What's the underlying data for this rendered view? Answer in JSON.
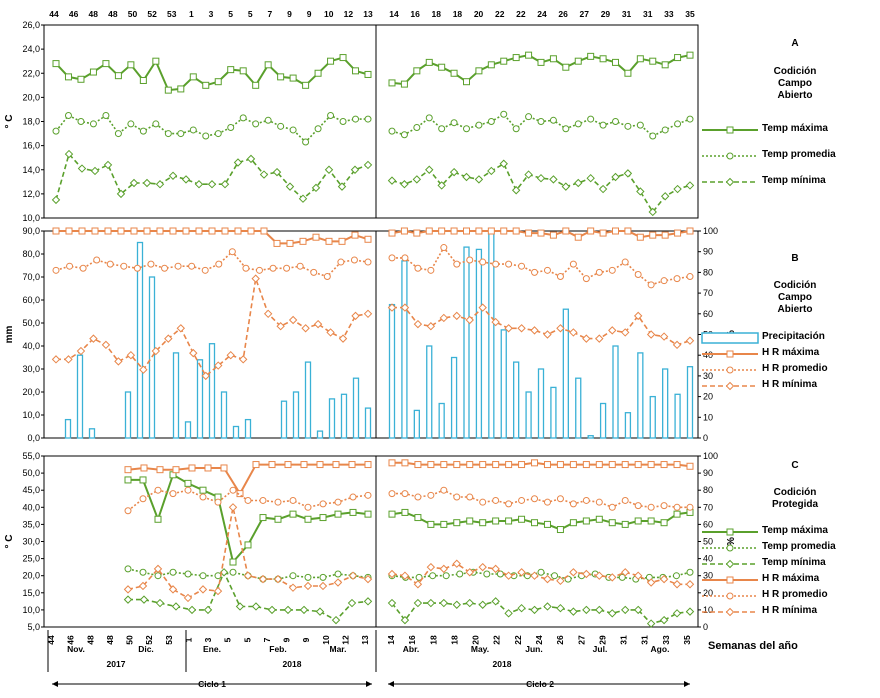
{
  "footer": {
    "weeks_label": "Semanas del año",
    "year_2017": "2017",
    "year_2018a": "2018",
    "year_2018b": "2018",
    "ciclo1": "Ciclo 1",
    "ciclo2": "Ciclo 2"
  },
  "weeks_top": [
    "44",
    "46",
    "48",
    "48",
    "50",
    "52",
    "53",
    "1",
    "3",
    "5",
    "5",
    "7",
    "9",
    "9",
    "10",
    "12",
    "13",
    "14",
    "16",
    "18",
    "18",
    "20",
    "22",
    "22",
    "24",
    "26",
    "27",
    "29",
    "31",
    "31",
    "33",
    "35"
  ],
  "weeks_bottom": [
    "44",
    "46",
    "48",
    "48",
    "50",
    "52",
    "53",
    "1",
    "3",
    "5",
    "5",
    "7",
    "9",
    "9",
    "10",
    "12",
    "13",
    "14",
    "16",
    "18",
    "18",
    "20",
    "22",
    "22",
    "24",
    "26",
    "27",
    "29",
    "31",
    "31",
    "33",
    "35"
  ],
  "months": [
    "Nov.",
    "Dic.",
    "Ene.",
    "Feb.",
    "Mar.",
    "Abr.",
    "May.",
    "Jun.",
    "Jul.",
    "Ago."
  ],
  "panels": {
    "A": {
      "letter": "A",
      "condition": [
        "Codición",
        "Campo",
        "Abierto"
      ]
    },
    "B": {
      "letter": "B",
      "condition": [
        "Codición",
        "Campo",
        "Abierto"
      ]
    },
    "C": {
      "letter": "C",
      "condition": [
        "Codición",
        "Protegida"
      ]
    }
  },
  "colors": {
    "green": "#5aa02c",
    "orange": "#e8864a",
    "blue": "#3ab1d6"
  },
  "chart_data": [
    {
      "type": "line",
      "panel": "A",
      "ylabel": "° C",
      "ylim": [
        10,
        26
      ],
      "yticks": [
        "10,0",
        "12,0",
        "14,0",
        "16,0",
        "18,0",
        "20,0",
        "22,0",
        "24,0",
        "26,0"
      ],
      "series": [
        {
          "name": "Temp máxima",
          "style": "solid",
          "color": "#5aa02c",
          "marker": "square",
          "cycle1": [
            22.8,
            21.7,
            21.5,
            22.1,
            22.8,
            21.8,
            22.7,
            21.4,
            23.0,
            20.6,
            20.7,
            21.7,
            21.0,
            21.3,
            22.3,
            22.2,
            21.0,
            22.7,
            21.7,
            21.6,
            21.0,
            22.0,
            23.0,
            23.3,
            22.2,
            21.9
          ],
          "cycle2": [
            21.2,
            21.1,
            22.2,
            22.9,
            22.5,
            22.0,
            21.3,
            22.2,
            22.7,
            23.0,
            23.3,
            23.5,
            22.9,
            23.2,
            22.5,
            23.0,
            23.4,
            23.2,
            22.9,
            22.0,
            23.2,
            23.0,
            22.7,
            23.3,
            23.5
          ]
        },
        {
          "name": "Temp promedia",
          "style": "dotted",
          "color": "#5aa02c",
          "marker": "circle",
          "cycle1": [
            17.2,
            18.5,
            18.0,
            17.8,
            18.5,
            17.0,
            17.8,
            17.2,
            17.8,
            17.0,
            17.0,
            17.3,
            16.8,
            17.0,
            17.5,
            18.3,
            17.8,
            18.1,
            17.6,
            17.3,
            16.3,
            17.4,
            18.5,
            18.0,
            18.2,
            18.2
          ],
          "cycle2": [
            17.2,
            16.9,
            17.5,
            18.3,
            17.4,
            17.9,
            17.4,
            17.7,
            18.0,
            18.6,
            17.4,
            18.4,
            18.0,
            18.1,
            17.4,
            17.8,
            18.2,
            17.7,
            18.0,
            17.6,
            17.7,
            16.8,
            17.3,
            17.8,
            18.2
          ]
        },
        {
          "name": "Temp mínima",
          "style": "dashed",
          "color": "#5aa02c",
          "marker": "diamond",
          "cycle1": [
            11.5,
            15.3,
            14.1,
            13.9,
            14.4,
            12.0,
            12.9,
            12.9,
            12.8,
            13.5,
            13.2,
            12.8,
            12.8,
            12.8,
            14.6,
            14.9,
            13.6,
            13.8,
            12.6,
            11.6,
            12.5,
            14.0,
            12.6,
            14.0,
            14.4
          ],
          "cycle2": [
            13.1,
            12.8,
            13.2,
            14.0,
            12.7,
            13.8,
            13.4,
            13.2,
            13.9,
            14.5,
            12.3,
            13.6,
            13.3,
            13.2,
            12.6,
            12.9,
            13.3,
            12.4,
            13.4,
            13.7,
            12.2,
            10.5,
            11.8,
            12.4,
            12.7
          ]
        }
      ]
    },
    {
      "type": "bar",
      "panel": "B",
      "ylabel": "mm",
      "y2label": "%",
      "ylim": [
        0,
        90
      ],
      "y2lim": [
        0,
        100
      ],
      "yticks": [
        "0,0",
        "10,0",
        "20,0",
        "30,0",
        "40,0",
        "50,0",
        "60,0",
        "70,0",
        "80,0",
        "90,0"
      ],
      "y2ticks": [
        "0",
        "10",
        "20",
        "30",
        "40",
        "50",
        "60",
        "70",
        "80",
        "90",
        "100"
      ],
      "series": [
        {
          "name": "Precipitación",
          "style": "bar",
          "color": "#3ab1d6",
          "cycle1": [
            0,
            8,
            36,
            4,
            0,
            0,
            20,
            85,
            70,
            0,
            37,
            7,
            34,
            41,
            20,
            5,
            8,
            0,
            0,
            16,
            20,
            33,
            3,
            17,
            19,
            26,
            13
          ],
          "cycle2": [
            58,
            77,
            12,
            40,
            15,
            35,
            83,
            82,
            89,
            47,
            33,
            20,
            30,
            22,
            56,
            26,
            1,
            15,
            40,
            11,
            37,
            18,
            30,
            19,
            31
          ]
        },
        {
          "name": "H R máxima",
          "style": "solid",
          "color": "#e8864a",
          "marker": "square",
          "cycle1": [
            100,
            100,
            100,
            100,
            100,
            100,
            100,
            100,
            100,
            100,
            100,
            100,
            100,
            100,
            100,
            100,
            100,
            94,
            94,
            95,
            97,
            95,
            95,
            98,
            96
          ],
          "cycle2": [
            99,
            100,
            99,
            100,
            100,
            100,
            100,
            100,
            100,
            100,
            100,
            99,
            99,
            98,
            100,
            97,
            100,
            99,
            100,
            100,
            97,
            98,
            98,
            99,
            100
          ]
        },
        {
          "name": "H R promedio",
          "style": "dotted",
          "color": "#e8864a",
          "marker": "circle",
          "cycle1": [
            81,
            83,
            82,
            86,
            84,
            83,
            82,
            84,
            82,
            83,
            83,
            81,
            84,
            90,
            82,
            81,
            82,
            82,
            83,
            80,
            78,
            85,
            86,
            85
          ],
          "cycle2": [
            87,
            87,
            82,
            81,
            92,
            84,
            86,
            85,
            84,
            84,
            83,
            80,
            81,
            78,
            84,
            77,
            80,
            81,
            85,
            79,
            74,
            76,
            77,
            78
          ]
        },
        {
          "name": "H R mínima",
          "style": "dashed",
          "color": "#e8864a",
          "marker": "diamond",
          "cycle1": [
            38,
            38,
            42,
            48,
            45,
            37,
            40,
            33,
            42,
            48,
            53,
            41,
            30,
            35,
            40,
            38,
            77,
            60,
            54,
            57,
            53,
            55,
            51,
            48,
            59,
            60
          ],
          "cycle2": [
            63,
            63,
            55,
            54,
            58,
            59,
            57,
            63,
            56,
            53,
            53,
            52,
            50,
            53,
            51,
            48,
            48,
            52,
            51,
            59,
            50,
            49,
            45,
            47
          ]
        }
      ]
    },
    {
      "type": "line",
      "panel": "C",
      "ylabel": "° C",
      "y2label": "%",
      "ylim": [
        5,
        55
      ],
      "y2lim": [
        0,
        100
      ],
      "yticks": [
        "5,0",
        "10,0",
        "15,0",
        "20,0",
        "25,0",
        "30,0",
        "35,0",
        "40,0",
        "45,0",
        "50,0",
        "55,0"
      ],
      "y2ticks": [
        "0",
        "10",
        "20",
        "30",
        "40",
        "50",
        "60",
        "70",
        "80",
        "90",
        "100"
      ],
      "series": [
        {
          "name": "Temp máxima",
          "style": "solid",
          "color": "#5aa02c",
          "marker": "square",
          "cycle1": [
            48,
            48,
            36.5,
            49.5,
            47,
            45,
            43,
            24,
            29,
            37,
            36.5,
            38,
            36.5,
            37,
            38,
            38.5,
            38
          ],
          "cycle2": [
            38,
            38.5,
            37,
            35,
            35,
            35.5,
            36,
            35.5,
            36,
            36,
            36.5,
            35.5,
            35,
            33.5,
            35.5,
            36,
            36.5,
            35.5,
            35,
            36,
            36,
            35.5,
            38,
            38.5
          ]
        },
        {
          "name": "Temp promedia",
          "style": "dotted",
          "color": "#5aa02c",
          "marker": "circle",
          "cycle1": [
            22,
            21,
            20,
            21,
            20.5,
            20,
            20,
            21,
            20,
            19,
            19,
            20,
            19.5,
            19.5,
            20.5,
            20,
            19.5
          ],
          "cycle2": [
            20,
            19.5,
            19.5,
            20,
            20,
            20.5,
            21,
            20.5,
            20.5,
            20,
            20,
            21,
            20,
            19,
            20,
            20.5,
            19.5,
            19.5,
            19,
            19.5,
            19.5,
            20,
            21
          ]
        },
        {
          "name": "Temp mínima",
          "style": "dashed",
          "color": "#5aa02c",
          "marker": "diamond",
          "cycle1": [
            13,
            13,
            12,
            11,
            10,
            10,
            21,
            11,
            11,
            10,
            10,
            10,
            9.5,
            7,
            12,
            12.5
          ],
          "cycle2": [
            12,
            7,
            12,
            12,
            12,
            11.5,
            12,
            11.5,
            12.5,
            9,
            10.5,
            10,
            11,
            10.5,
            9.5,
            10,
            10,
            9,
            10,
            10,
            6,
            7,
            9,
            9.5
          ]
        },
        {
          "name": "H R máxima",
          "style": "solid",
          "color": "#e8864a",
          "marker": "square",
          "cycle1": [
            92,
            93,
            92,
            92,
            93,
            93,
            93,
            78,
            95,
            95,
            95,
            95,
            95,
            95,
            95,
            95
          ],
          "cycle2": [
            96,
            96,
            95,
            95,
            95,
            95,
            95,
            95,
            95,
            95,
            95,
            96,
            95,
            95,
            95,
            95,
            95,
            95,
            95,
            95,
            95,
            95,
            95,
            94
          ]
        },
        {
          "name": "H R promedio",
          "style": "dotted",
          "color": "#e8864a",
          "marker": "circle",
          "cycle1": [
            68,
            75,
            80,
            78,
            80,
            76,
            73,
            80,
            74,
            74,
            73,
            74,
            70,
            72,
            73,
            76,
            77
          ],
          "cycle2": [
            78,
            78,
            76,
            77,
            80,
            76,
            76,
            73,
            74,
            72,
            74,
            75,
            73,
            75,
            72,
            74,
            73,
            70,
            74,
            71,
            70,
            71,
            70,
            70
          ]
        },
        {
          "name": "H R mínima",
          "style": "dashed",
          "color": "#e8864a",
          "marker": "diamond",
          "cycle1": [
            22,
            24,
            34,
            22,
            17,
            22,
            21,
            70,
            30,
            28,
            28,
            23,
            24,
            24,
            26,
            30,
            28
          ],
          "cycle2": [
            31,
            30,
            25,
            35,
            34,
            37,
            32,
            35,
            34,
            30,
            32,
            30,
            28,
            27,
            32,
            31,
            30,
            29,
            32,
            30,
            26,
            28,
            25,
            25
          ]
        }
      ]
    }
  ]
}
